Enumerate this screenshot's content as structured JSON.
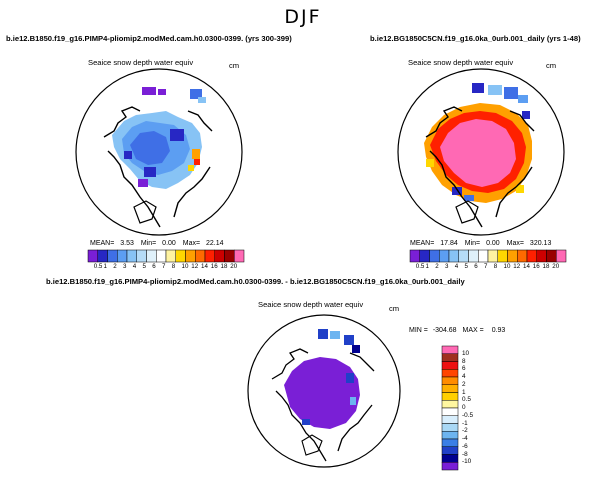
{
  "season": "DJF",
  "units": "cm",
  "panels": [
    {
      "id": "left",
      "run_title": "b.ie12.B1850.f19_g16.PIMP4-pliomip2.modMed.cam.h0.0300-0399. (yrs 300-399)",
      "field_title": "Seaice snow depth water equiv",
      "stats": {
        "mean_label": "MEAN=",
        "mean": "3.53",
        "min_label": "Min=",
        "min": "0.00",
        "max_label": "Max=",
        "max": "22.14"
      }
    },
    {
      "id": "right",
      "run_title": "b.ie12.BG1850C5CN.f19_g16.0ka_0urb.001_daily (yrs 1-48)",
      "field_title": "Seaice snow depth water equiv",
      "stats": {
        "mean_label": "MEAN=",
        "mean": "17.84",
        "min_label": "Min=",
        "min": "0.00",
        "max_label": "Max=",
        "max": "320.13"
      }
    },
    {
      "id": "diff",
      "run_title": "b.ie12.B1850.f19_g16.PIMP4-pliomip2.modMed.cam.h0.0300-0399. - b.ie12.BG1850C5CN.f19_g16.0ka_0urb.001_daily",
      "field_title": "Seaice snow depth water equiv",
      "stats": {
        "min_label": "MIN =",
        "min": "-304.68",
        "max_label": "MAX =",
        "max": "0.93"
      }
    }
  ],
  "colorbar_abs": {
    "labels": [
      "0.5",
      "1",
      "2",
      "3",
      "4",
      "5",
      "6",
      "7",
      "8",
      "10",
      "12",
      "14",
      "16",
      "18",
      "20"
    ],
    "colors": [
      "#7a1fd6",
      "#2727c4",
      "#3f6fe6",
      "#5c9ef2",
      "#87c3f5",
      "#b5dcf7",
      "#e0f1fa",
      "#ffffff",
      "#fff3a0",
      "#ffd700",
      "#ffa000",
      "#ff6a00",
      "#ff2000",
      "#cc0000",
      "#990000",
      "#ff69b4"
    ]
  },
  "colorbar_diff": {
    "labels": [
      "10",
      "8",
      "6",
      "4",
      "2",
      "1",
      "0.5",
      "0",
      "-0.5",
      "-1",
      "-2",
      "-4",
      "-6",
      "-8",
      "-10"
    ],
    "colors": [
      "#ff69b4",
      "#a03020",
      "#ee1010",
      "#ff4500",
      "#ff8c00",
      "#ffb000",
      "#ffd000",
      "#fff7a0",
      "#ffffff",
      "#d8eefc",
      "#a9d8f5",
      "#6cb4f0",
      "#3a7fe6",
      "#2040c8",
      "#000090",
      "#7a1fd6"
    ]
  }
}
